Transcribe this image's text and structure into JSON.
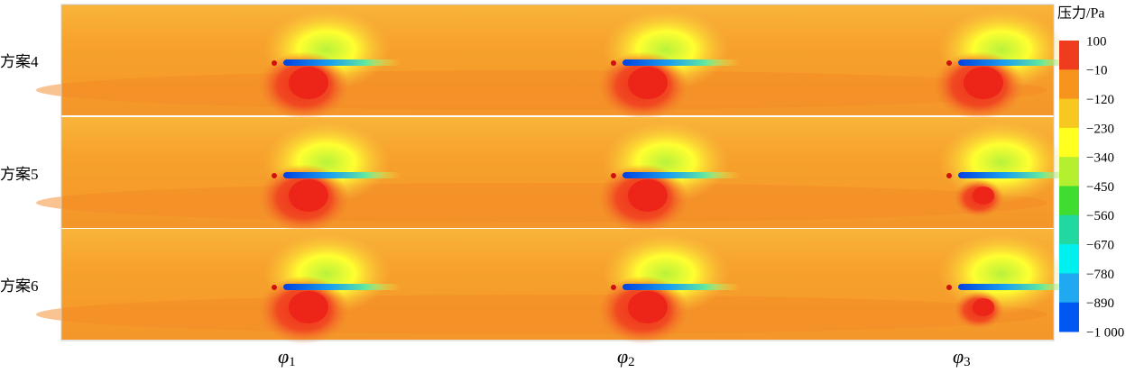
{
  "figure": {
    "rows": [
      "方案4",
      "方案5",
      "方案6"
    ],
    "columns": [
      {
        "symbol": "φ",
        "subscript": "1"
      },
      {
        "symbol": "φ",
        "subscript": "2"
      },
      {
        "symbol": "φ",
        "subscript": "3"
      }
    ],
    "colorbar": {
      "title": "压力/Pa",
      "labels": [
        "100",
        "−10",
        "−120",
        "−230",
        "−340",
        "−450",
        "−560",
        "−670",
        "−780",
        "−890",
        "−1 000"
      ]
    }
  }
}
